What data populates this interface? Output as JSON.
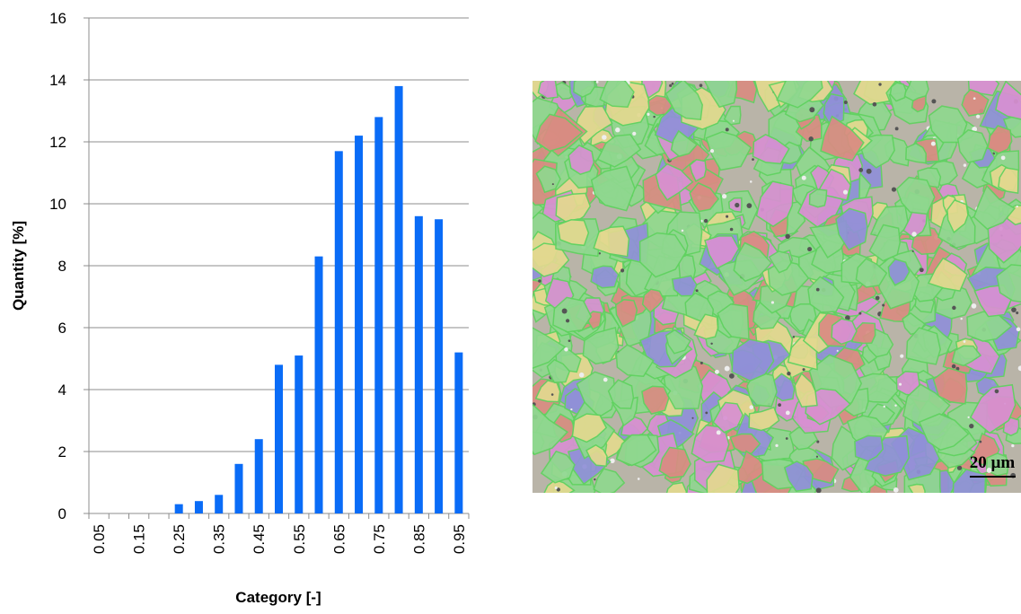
{
  "chart_data": {
    "type": "bar",
    "x_label": "Category [-]",
    "y_label": "Quantity [%]",
    "categories": [
      "0.05",
      null,
      "0.15",
      null,
      "0.25",
      null,
      "0.35",
      null,
      "0.45",
      null,
      "0.55",
      null,
      "0.65",
      null,
      "0.75",
      null,
      "0.85",
      null,
      "0.95"
    ],
    "values": [
      0,
      0,
      0,
      0,
      0.3,
      0.4,
      0.6,
      1.6,
      2.4,
      4.8,
      5.1,
      8.3,
      11.7,
      12.2,
      12.8,
      13.8,
      9.6,
      9.5,
      5.2
    ],
    "color": "#0a6cf7",
    "ylim": [
      0,
      16
    ],
    "yticks": [
      0,
      2,
      4,
      6,
      8,
      10,
      12,
      14,
      16
    ],
    "grid": true
  },
  "micrograph": {
    "scale_bar": "20 µm"
  }
}
